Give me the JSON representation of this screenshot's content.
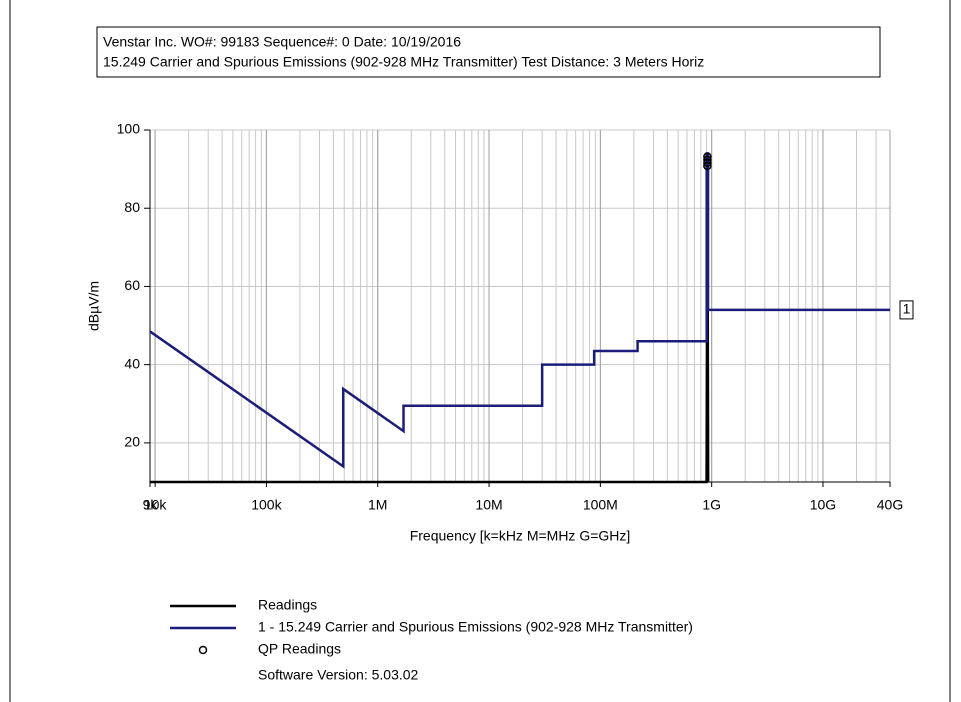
{
  "chart_data": {
    "type": "line",
    "header": [
      "Venstar Inc. WO#: 99183 Sequence#: 0 Date:  10/19/2016",
      "15.249 Carrier and Spurious Emissions (902-928 MHz Transmitter)  Test Distance: 3 Meters  Horiz"
    ],
    "y_label": "dBµV/m",
    "x_label": "Frequency [k=kHz M=MHz G=GHz]",
    "log_x": true,
    "grid": true,
    "xlim": [
      9000,
      40000000000
    ],
    "ylim": [
      10,
      100
    ],
    "xticks": [
      {
        "value": 9000,
        "label": "9k"
      },
      {
        "value": 10000,
        "label": "10k"
      },
      {
        "value": 100000,
        "label": "100k"
      },
      {
        "value": 1000000,
        "label": "1M"
      },
      {
        "value": 10000000,
        "label": "10M"
      },
      {
        "value": 100000000,
        "label": "100M"
      },
      {
        "value": 1000000000,
        "label": "1G"
      },
      {
        "value": 10000000000,
        "label": "10G"
      },
      {
        "value": 40000000000,
        "label": "40G"
      }
    ],
    "yticks": [
      20,
      40,
      60,
      80,
      100
    ],
    "series": [
      {
        "name": "Readings",
        "color": "#000000",
        "style": "line",
        "x": [
          9000,
          900000000,
          915000000,
          930000000
        ],
        "values": [
          10,
          10,
          92,
          10
        ]
      },
      {
        "name": "1 - 15.249 Carrier and Spurious Emissions (902-928 MHz Transmitter)",
        "color": "#1c1c7a",
        "style": "line",
        "limit_label": "1",
        "x": [
          9000,
          490000,
          490000,
          1705000,
          1705000,
          30000000,
          30000000,
          88000000,
          88000000,
          216000000,
          216000000,
          902000000,
          902000000,
          928000000,
          928000000,
          40000000000
        ],
        "values": [
          48.5,
          14,
          33.8,
          23,
          29.5,
          29.5,
          40,
          40,
          43.5,
          43.5,
          46,
          46,
          94,
          94,
          54,
          54
        ]
      },
      {
        "name": "QP Readings",
        "color": "#000000",
        "style": "markers",
        "x": [
          915000000,
          915000000,
          915000000,
          915000000
        ],
        "values": [
          93.2,
          92.4,
          91.6,
          90.8
        ]
      }
    ],
    "footer": "Software Version: 5.03.02"
  }
}
